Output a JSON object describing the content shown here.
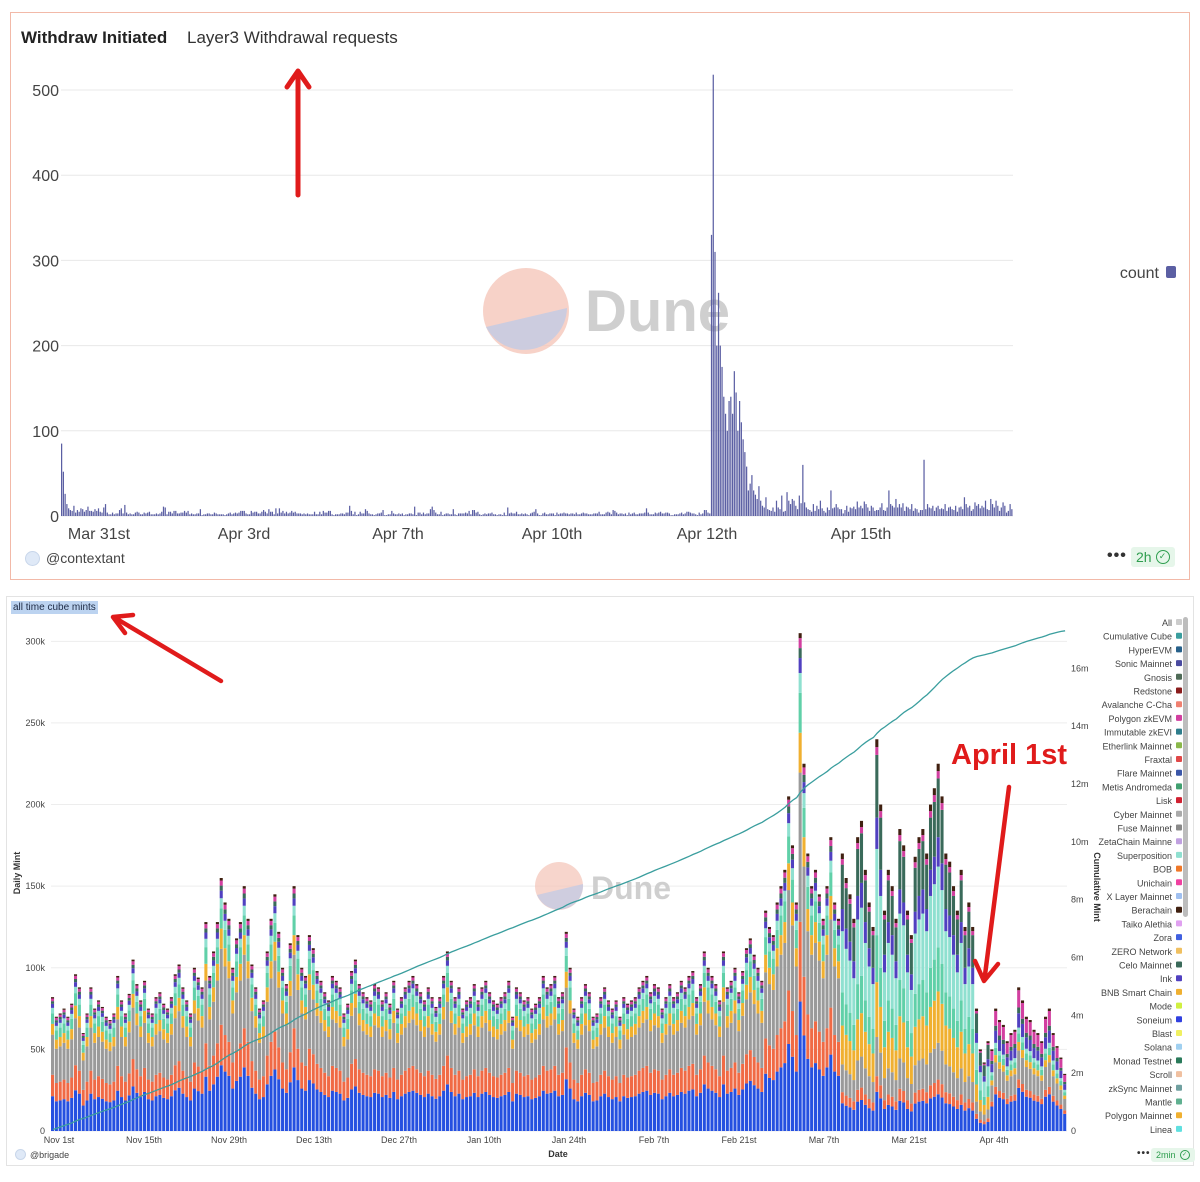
{
  "top_panel": {
    "title": "Withdraw Initiated",
    "subtitle": "Layer3 Withdrawal requests",
    "watermark": "Dune",
    "author": "@contextant",
    "freshness": "2h",
    "legend_label": "count",
    "colors": {
      "bar": "#5b5fa3",
      "border": "#f2b9a8",
      "arrow": "#e01b1b"
    }
  },
  "bottom_panel": {
    "title": "all time cube mints",
    "watermark": "Dune",
    "author": "@brigade",
    "freshness": "2min",
    "annotation": "April 1st",
    "colors": {
      "cumulative_line": "#3a9e9e",
      "arrow": "#e01b1b"
    }
  },
  "chart_data": [
    {
      "type": "bar",
      "series_name": "count",
      "ylim": [
        0,
        520
      ],
      "yticks": [
        0,
        100,
        200,
        300,
        400,
        500
      ],
      "xticks": [
        {
          "label": "Mar 31st",
          "day": 0
        },
        {
          "label": "Apr 3rd",
          "day": 3
        },
        {
          "label": "Apr 7th",
          "day": 6
        },
        {
          "label": "Apr 10th",
          "day": 9
        },
        {
          "label": "Apr 12th",
          "day": 12
        },
        {
          "label": "Apr 15th",
          "day": 15
        }
      ],
      "values": [
        85,
        52,
        26,
        14,
        9,
        7,
        6,
        12,
        4,
        7,
        5,
        9,
        8,
        5,
        7,
        11,
        6,
        6,
        5,
        8,
        6,
        9,
        5,
        4,
        10,
        14,
        4,
        2,
        2,
        4,
        2,
        3,
        3,
        7,
        9,
        3,
        13,
        4,
        2,
        3,
        2,
        2,
        4,
        5,
        4,
        2,
        2,
        4,
        3,
        4,
        5,
        2,
        2,
        2,
        3,
        2,
        3,
        5,
        11,
        10,
        2,
        5,
        5,
        3,
        6,
        6,
        3,
        3,
        4,
        4,
        6,
        4,
        6,
        2,
        3,
        2,
        2,
        3,
        3,
        8,
        1,
        2,
        2,
        3,
        3,
        2,
        2,
        4,
        3,
        2,
        2,
        2,
        2,
        1,
        2,
        3,
        4,
        2,
        3,
        4,
        3,
        4,
        6,
        6,
        6,
        3,
        2,
        2,
        6,
        4,
        5,
        5,
        3,
        3,
        5,
        7,
        5,
        3,
        8,
        5,
        5,
        2,
        9,
        3,
        9,
        4,
        6,
        3,
        5,
        3,
        4,
        6,
        4,
        5,
        3,
        3,
        3,
        2,
        3,
        2,
        3,
        2,
        2,
        2,
        5,
        2,
        2,
        5,
        2,
        6,
        4,
        4,
        6,
        6,
        2,
        1,
        2,
        2,
        2,
        3,
        3,
        2,
        4,
        4,
        12,
        6,
        2,
        5,
        1,
        2,
        5,
        3,
        3,
        8,
        6,
        3,
        2,
        2,
        1,
        2,
        3,
        3,
        4,
        7,
        1,
        1,
        2,
        2,
        6,
        3,
        2,
        2,
        3,
        2,
        3,
        1,
        2,
        2,
        3,
        3,
        2,
        11,
        1,
        4,
        4,
        2,
        4,
        2,
        3,
        3,
        8,
        11,
        7,
        4,
        2,
        2,
        5,
        1,
        2,
        3,
        3,
        2,
        2,
        8,
        2,
        1,
        3,
        3,
        3,
        3,
        4,
        3,
        6,
        2,
        7,
        7,
        4,
        5,
        2,
        1,
        2,
        3,
        2,
        3,
        3,
        4,
        2,
        2,
        1,
        2,
        2,
        1,
        4,
        1,
        10,
        3,
        4,
        3,
        3,
        5,
        2,
        2,
        3,
        2,
        3,
        2,
        1,
        3,
        4,
        5,
        8,
        3,
        1,
        1,
        3,
        4,
        2,
        2,
        3,
        3,
        3,
        1,
        4,
        2,
        3,
        3,
        4,
        3,
        3,
        2,
        3,
        3,
        2,
        4,
        2,
        2,
        3,
        4,
        3,
        3,
        2,
        2,
        2,
        3,
        3,
        3,
        5,
        2,
        2,
        2,
        4,
        5,
        4,
        2,
        7,
        6,
        4,
        2,
        3,
        3,
        2,
        3,
        1,
        4,
        2,
        3,
        4,
        2,
        2,
        3,
        3,
        3,
        4,
        9,
        4,
        2,
        2,
        2,
        4,
        3,
        4,
        5,
        3,
        3,
        4,
        4,
        3,
        1,
        1,
        2,
        2,
        2,
        3,
        4,
        2,
        3,
        5,
        5,
        4,
        3,
        3,
        2,
        1,
        4,
        2,
        3,
        7,
        7,
        4,
        3,
        330,
        518,
        310,
        200,
        262,
        200,
        175,
        140,
        120,
        100,
        135,
        140,
        120,
        170,
        145,
        100,
        135,
        110,
        90,
        75,
        58,
        30,
        38,
        48,
        30,
        25,
        20,
        35,
        18,
        12,
        10,
        22,
        8,
        7,
        6,
        10,
        5,
        18,
        10,
        8,
        24,
        5,
        6,
        28,
        18,
        14,
        20,
        18,
        12,
        8,
        24,
        15,
        60,
        16,
        10,
        8,
        7,
        5,
        14,
        6,
        12,
        8,
        18,
        9,
        6,
        4,
        10,
        7,
        30,
        9,
        10,
        14,
        10,
        8,
        8,
        3,
        7,
        12,
        5,
        10,
        9,
        11,
        8,
        17,
        10,
        12,
        9,
        17,
        14,
        10,
        6,
        12,
        10,
        6,
        7,
        7,
        10,
        15,
        7,
        6,
        10,
        30,
        14,
        12,
        10,
        20,
        10,
        14,
        10,
        15,
        6,
        11,
        10,
        8,
        14,
        6,
        9,
        8,
        4,
        7,
        7,
        66,
        8,
        14,
        10,
        9,
        12,
        6,
        10,
        12,
        8,
        9,
        8,
        14,
        6,
        10,
        11,
        8,
        7,
        12,
        5,
        10,
        11,
        8,
        22,
        14,
        10,
        12,
        6,
        8,
        16,
        12,
        14,
        9,
        12,
        10,
        18,
        8,
        7,
        20,
        14,
        10,
        18,
        12,
        6,
        10,
        16,
        12,
        4,
        6,
        14,
        8
      ]
    },
    {
      "type": "stacked-bar+line",
      "xlabel": "Date",
      "ylabel": "Daily Mint",
      "y2label": "Cumulative Mint",
      "ylim": [
        0,
        310000
      ],
      "y2lim": [
        0,
        17500000
      ],
      "yticks": [
        "0",
        "50k",
        "100k",
        "150k",
        "200k",
        "250k",
        "300k"
      ],
      "y2ticks": [
        "0",
        "2m",
        "4m",
        "6m",
        "8m",
        "10m",
        "12m",
        "14m",
        "16m"
      ],
      "xticks": [
        "Nov 1st",
        "Nov 15th",
        "Nov 29th",
        "Dec 13th",
        "Dec 27th",
        "Jan 10th",
        "Jan 24th",
        "Feb 7th",
        "Feb 21st",
        "Mar 7th",
        "Mar 21st",
        "Apr 4th"
      ],
      "legend": [
        {
          "name": "All",
          "color": "#cccccc"
        },
        {
          "name": "Cumulative Cube",
          "color": "#3a9e9e"
        },
        {
          "name": "HyperEVM",
          "color": "#26608a"
        },
        {
          "name": "Sonic Mainnet",
          "color": "#4a4aa0"
        },
        {
          "name": "Gnosis",
          "color": "#4f6b57"
        },
        {
          "name": "Redstone",
          "color": "#8a1c1c"
        },
        {
          "name": "Avalanche C-Cha",
          "color": "#f08070"
        },
        {
          "name": "Polygon zkEVM",
          "color": "#d23fa0"
        },
        {
          "name": "Immutable zkEVI",
          "color": "#2e7d8c"
        },
        {
          "name": "Etherlink Mainnet",
          "color": "#8ab84a"
        },
        {
          "name": "Fraxtal",
          "color": "#e04848"
        },
        {
          "name": "Flare Mainnet",
          "color": "#3a56a8"
        },
        {
          "name": "Metis Andromeda",
          "color": "#40a070"
        },
        {
          "name": "Lisk",
          "color": "#d02030"
        },
        {
          "name": "Cyber Mainnet",
          "color": "#aaaaaa"
        },
        {
          "name": "Fuse Mainnet",
          "color": "#8a8a8a"
        },
        {
          "name": "ZetaChain Mainne",
          "color": "#c0a0e0"
        },
        {
          "name": "Superposition",
          "color": "#8fe0d0"
        },
        {
          "name": "BOB",
          "color": "#f07828"
        },
        {
          "name": "Unichain",
          "color": "#f040a0"
        },
        {
          "name": "X Layer Mainnet",
          "color": "#a0c0f0"
        },
        {
          "name": "Berachain",
          "color": "#402010"
        },
        {
          "name": "Taiko Alethia",
          "color": "#e0a0f0"
        },
        {
          "name": "Zora",
          "color": "#4060e0"
        },
        {
          "name": "ZERO Network",
          "color": "#f0c060"
        },
        {
          "name": "Celo Mainnet",
          "color": "#3a6a5a"
        },
        {
          "name": "Ink",
          "color": "#5040c0"
        },
        {
          "name": "BNB Smart Chain",
          "color": "#f0b030"
        },
        {
          "name": "Mode",
          "color": "#d0f040"
        },
        {
          "name": "Soneium",
          "color": "#3040e0"
        },
        {
          "name": "Blast",
          "color": "#f0f060"
        },
        {
          "name": "Solana",
          "color": "#a0d0f0"
        },
        {
          "name": "Monad Testnet",
          "color": "#2a7a5a"
        },
        {
          "name": "Scroll",
          "color": "#f0c0a0"
        },
        {
          "name": "zkSync Mainnet",
          "color": "#70a0a0"
        },
        {
          "name": "Mantle",
          "color": "#60b090"
        },
        {
          "name": "Polygon Mainnet",
          "color": "#f0b030"
        },
        {
          "name": "Linea",
          "color": "#60e0e0"
        }
      ],
      "daily_total": [
        82000,
        70000,
        72000,
        75000,
        70000,
        78000,
        96000,
        88000,
        60000,
        72000,
        88000,
        75000,
        80000,
        76000,
        70000,
        68000,
        72000,
        95000,
        80000,
        72000,
        84000,
        105000,
        90000,
        80000,
        92000,
        75000,
        72000,
        82000,
        85000,
        78000,
        75000,
        82000,
        96000,
        102000,
        88000,
        80000,
        72000,
        100000,
        94000,
        88000,
        128000,
        95000,
        110000,
        128000,
        155000,
        140000,
        130000,
        100000,
        118000,
        128000,
        150000,
        130000,
        102000,
        88000,
        75000,
        80000,
        110000,
        130000,
        145000,
        122000,
        100000,
        90000,
        115000,
        150000,
        120000,
        100000,
        95000,
        120000,
        112000,
        98000,
        92000,
        85000,
        80000,
        95000,
        92000,
        88000,
        72000,
        78000,
        98000,
        105000,
        90000,
        85000,
        82000,
        80000,
        90000,
        88000,
        80000,
        85000,
        78000,
        92000,
        75000,
        82000,
        88000,
        92000,
        95000,
        90000,
        85000,
        80000,
        88000,
        82000,
        76000,
        82000,
        95000,
        110000,
        92000,
        82000,
        88000,
        75000,
        80000,
        82000,
        90000,
        80000,
        88000,
        92000,
        85000,
        80000,
        78000,
        82000,
        85000,
        92000,
        70000,
        88000,
        85000,
        80000,
        82000,
        75000,
        78000,
        82000,
        95000,
        88000,
        90000,
        95000,
        82000,
        85000,
        122000,
        100000,
        75000,
        70000,
        82000,
        90000,
        85000,
        70000,
        72000,
        82000,
        88000,
        80000,
        75000,
        80000,
        70000,
        82000,
        78000,
        80000,
        82000,
        88000,
        92000,
        95000,
        85000,
        90000,
        88000,
        75000,
        82000,
        90000,
        82000,
        85000,
        92000,
        88000,
        95000,
        98000,
        82000,
        90000,
        110000,
        100000,
        95000,
        90000,
        80000,
        110000,
        88000,
        92000,
        100000,
        85000,
        98000,
        112000,
        118000,
        108000,
        100000,
        92000,
        135000,
        125000,
        120000,
        140000,
        150000,
        160000,
        205000,
        175000,
        140000,
        305000,
        225000,
        170000,
        150000,
        160000,
        145000,
        130000,
        150000,
        180000,
        140000,
        130000,
        170000,
        155000,
        145000,
        130000,
        180000,
        190000,
        160000,
        140000,
        125000,
        240000,
        200000,
        135000,
        160000,
        150000,
        130000,
        185000,
        175000,
        135000,
        120000,
        168000,
        180000,
        185000,
        170000,
        200000,
        210000,
        225000,
        205000,
        170000,
        165000,
        150000,
        135000,
        160000,
        125000,
        140000,
        125000,
        75000,
        50000,
        42000,
        55000,
        50000,
        75000,
        68000,
        65000,
        55000,
        60000,
        62000,
        88000,
        80000,
        70000,
        68000,
        62000,
        60000,
        55000,
        70000,
        75000,
        60000,
        52000,
        45000,
        35000
      ],
      "cumulative_end": "17.3m"
    }
  ]
}
